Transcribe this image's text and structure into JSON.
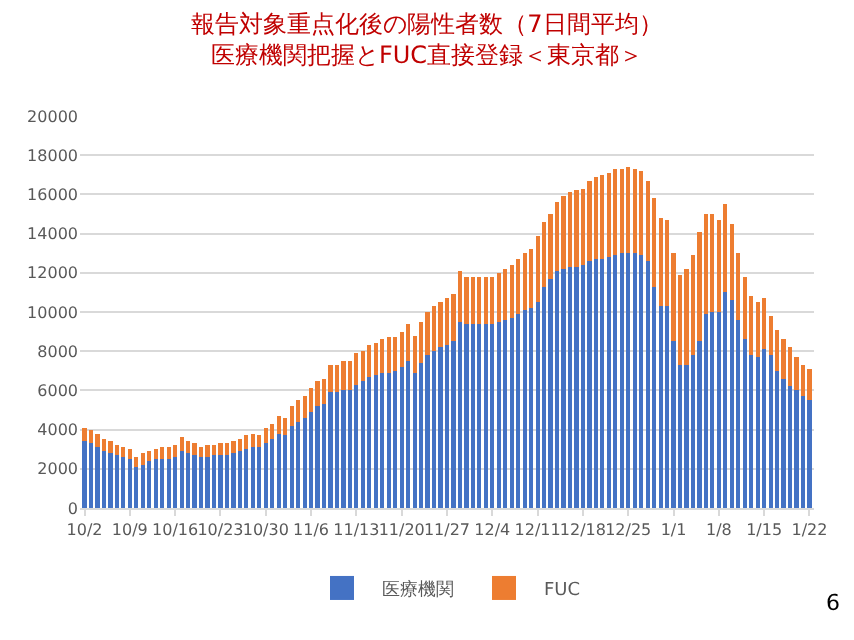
{
  "chart_data": {
    "type": "bar",
    "title": "報告対象重点化後の陽性者数（7日間平均）",
    "subtitle": "医療機関把握とFUC直接登録＜東京都＞",
    "categories": [
      "10/2",
      null,
      null,
      null,
      null,
      null,
      null,
      "10/9",
      null,
      null,
      null,
      null,
      null,
      null,
      "10/16",
      null,
      null,
      null,
      null,
      null,
      null,
      "10/23",
      null,
      null,
      null,
      null,
      null,
      null,
      "10/30",
      null,
      null,
      null,
      null,
      null,
      null,
      "11/6",
      null,
      null,
      null,
      null,
      null,
      null,
      "11/13",
      null,
      null,
      null,
      null,
      null,
      null,
      "11/20",
      null,
      null,
      null,
      null,
      null,
      null,
      "11/27",
      null,
      null,
      null,
      null,
      null,
      null,
      "12/4",
      null,
      null,
      null,
      null,
      null,
      null,
      "12/11",
      null,
      null,
      null,
      null,
      null,
      null,
      "12/18",
      null,
      null,
      null,
      null,
      null,
      null,
      "12/25",
      null,
      null,
      null,
      null,
      null,
      null,
      "1/1",
      null,
      null,
      null,
      null,
      null,
      null,
      "1/8",
      null,
      null,
      null,
      null,
      null,
      null,
      "1/15",
      null,
      null,
      null,
      null,
      null,
      null,
      "1/22"
    ],
    "stacked": true,
    "series": [
      {
        "name": "医療機関",
        "color": "#4472c4",
        "values": [
          3400,
          3300,
          3100,
          2900,
          2800,
          2700,
          2600,
          2500,
          2100,
          2200,
          2400,
          2500,
          2500,
          2500,
          2600,
          2900,
          2800,
          2700,
          2600,
          2600,
          2700,
          2700,
          2700,
          2800,
          2900,
          3000,
          3100,
          3100,
          3300,
          3500,
          3800,
          3700,
          4200,
          4400,
          4600,
          4900,
          5200,
          5300,
          5900,
          5900,
          6000,
          6000,
          6300,
          6500,
          6700,
          6800,
          6900,
          6900,
          7000,
          7200,
          7500,
          6900,
          7400,
          7800,
          8000,
          8200,
          8300,
          8500,
          9500,
          9400,
          9400,
          9400,
          9400,
          9400,
          9500,
          9600,
          9700,
          9900,
          10100,
          10200,
          10500,
          11300,
          11700,
          12100,
          12200,
          12300,
          12300,
          12400,
          12600,
          12700,
          12700,
          12800,
          12900,
          13000,
          13000,
          13000,
          12900,
          12600,
          11300,
          10300,
          10300,
          8500,
          7300,
          7300,
          7800,
          8500,
          9900,
          10000,
          10000,
          11000,
          10600,
          9600,
          8600,
          7800,
          7700,
          8100,
          7800,
          7000,
          6600,
          6200,
          6000,
          5700,
          5500
        ]
      },
      {
        "name": "FUC",
        "color": "#ed7d31",
        "values": [
          700,
          700,
          700,
          600,
          600,
          500,
          500,
          500,
          500,
          600,
          500,
          500,
          600,
          600,
          600,
          700,
          600,
          600,
          500,
          600,
          500,
          600,
          600,
          600,
          600,
          700,
          700,
          600,
          800,
          800,
          900,
          900,
          1000,
          1100,
          1100,
          1200,
          1300,
          1300,
          1400,
          1400,
          1500,
          1500,
          1600,
          1500,
          1600,
          1600,
          1700,
          1800,
          1700,
          1800,
          1900,
          1900,
          2100,
          2200,
          2300,
          2300,
          2400,
          2400,
          2600,
          2400,
          2400,
          2400,
          2400,
          2400,
          2500,
          2600,
          2700,
          2800,
          2900,
          3000,
          3400,
          3300,
          3300,
          3500,
          3700,
          3800,
          3900,
          3900,
          4100,
          4200,
          4300,
          4300,
          4400,
          4300,
          4400,
          4300,
          4300,
          4100,
          4500,
          4500,
          4400,
          4500,
          4600,
          4900,
          5100,
          5600,
          5100,
          5000,
          4700,
          4500,
          3900,
          3400,
          3200,
          3000,
          2800,
          2600,
          2000,
          2100,
          2000,
          2000,
          1700,
          1600,
          1600
        ]
      }
    ],
    "ylim": [
      0,
      20000
    ],
    "yticks": [
      0,
      2000,
      4000,
      6000,
      8000,
      10000,
      12000,
      14000,
      16000,
      18000,
      20000
    ],
    "grid": "y",
    "legend": "bottom",
    "annotations": [
      "6"
    ]
  }
}
